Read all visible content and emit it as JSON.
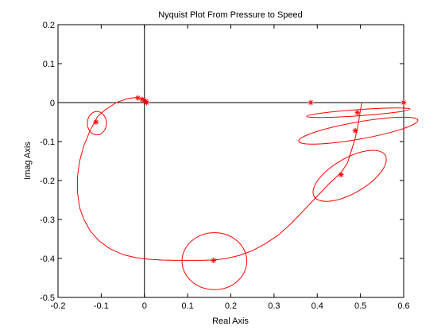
{
  "chart_data": {
    "type": "line",
    "title": "Nyquist Plot From Pressure to Speed",
    "xlabel": "Real Axis",
    "ylabel": "Imag Axis",
    "xlim": [
      -0.2,
      0.6
    ],
    "ylim": [
      -0.5,
      0.2
    ],
    "xticks": [
      -0.2,
      -0.1,
      0,
      0.1,
      0.2,
      0.3,
      0.4,
      0.5,
      0.6
    ],
    "yticks": [
      -0.5,
      -0.4,
      -0.3,
      -0.2,
      -0.1,
      0,
      0.1,
      0.2
    ],
    "xtick_labels": [
      "-0.2",
      "-0.1",
      "0",
      "0.1",
      "0.2",
      "0.3",
      "0.4",
      "0.5",
      "0.6"
    ],
    "ytick_labels": [
      "-0.5",
      "-0.4",
      "-0.3",
      "-0.2",
      "-0.1",
      "0",
      "0.1",
      "0.2"
    ],
    "grid": false,
    "line_color": "#ff0000",
    "axis_line_color": "#000000",
    "series": [
      {
        "x": [
          0.005,
          0.0,
          -0.01,
          -0.02,
          -0.04,
          -0.065,
          -0.09,
          -0.108,
          -0.125,
          -0.14,
          -0.15,
          -0.155,
          -0.155,
          -0.15,
          -0.14,
          -0.125,
          -0.105,
          -0.08,
          -0.05,
          -0.02,
          0.01,
          0.04,
          0.07,
          0.1,
          0.13,
          0.16,
          0.19,
          0.22,
          0.25,
          0.28,
          0.31,
          0.34,
          0.37,
          0.4,
          0.43,
          0.455,
          0.47,
          0.48,
          0.488,
          0.493,
          0.497,
          0.5,
          0.503
        ],
        "y": [
          0.002,
          0.009,
          0.012,
          0.013,
          0.01,
          0.0,
          -0.018,
          -0.035,
          -0.07,
          -0.11,
          -0.15,
          -0.19,
          -0.23,
          -0.27,
          -0.3,
          -0.33,
          -0.355,
          -0.375,
          -0.39,
          -0.398,
          -0.402,
          -0.404,
          -0.405,
          -0.405,
          -0.405,
          -0.404,
          -0.4,
          -0.392,
          -0.38,
          -0.362,
          -0.34,
          -0.31,
          -0.275,
          -0.24,
          -0.205,
          -0.18,
          -0.155,
          -0.12,
          -0.09,
          -0.065,
          -0.04,
          -0.02,
          0.0
        ]
      }
    ],
    "loops": [
      {
        "cx": -0.11,
        "cy": -0.053,
        "rx": 0.022,
        "ry": 0.03,
        "rot": 0
      },
      {
        "cx": 0.162,
        "cy": -0.407,
        "rx": 0.075,
        "ry": 0.073,
        "rot": 0
      },
      {
        "cx": 0.475,
        "cy": -0.188,
        "rx": 0.095,
        "ry": 0.045,
        "rot": -30
      },
      {
        "cx": 0.495,
        "cy": -0.072,
        "rx": 0.14,
        "ry": 0.022,
        "rot": -10
      },
      {
        "cx": 0.495,
        "cy": -0.026,
        "rx": 0.12,
        "ry": 0.008,
        "rot": -4
      }
    ],
    "markers": [
      {
        "x": -0.112,
        "y": -0.05
      },
      {
        "x": -0.015,
        "y": 0.012
      },
      {
        "x": -0.005,
        "y": 0.008
      },
      {
        "x": 0.003,
        "y": 0.003
      },
      {
        "x": 0.005,
        "y": 0.0
      },
      {
        "x": 0.16,
        "y": -0.405
      },
      {
        "x": 0.385,
        "y": 0.0
      },
      {
        "x": 0.455,
        "y": -0.185
      },
      {
        "x": 0.488,
        "y": -0.072
      },
      {
        "x": 0.493,
        "y": -0.026
      },
      {
        "x": 0.6,
        "y": 0.0
      }
    ]
  }
}
